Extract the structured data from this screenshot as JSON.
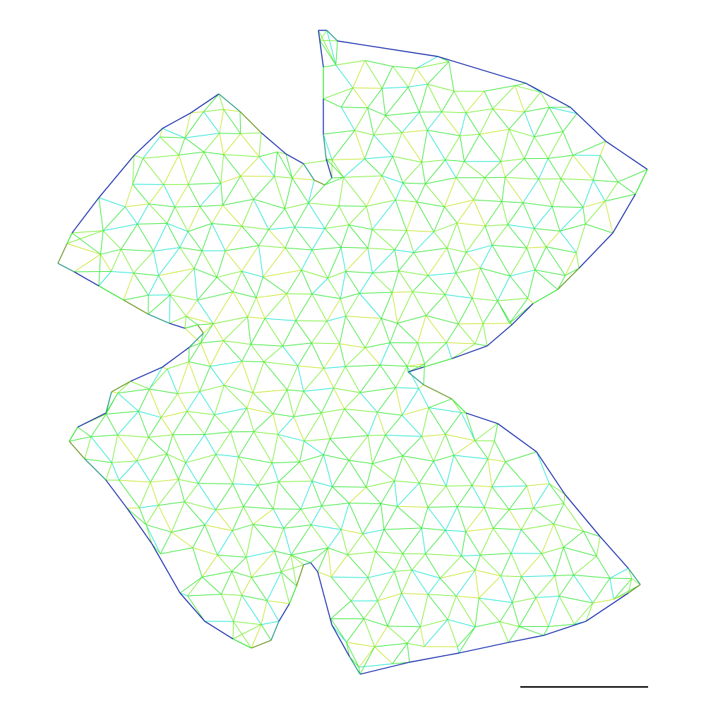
{
  "figure": {
    "kind": "flattened triangulated surface mesh (four-lobed)",
    "lobes": 4,
    "background": "#ffffff",
    "scale_bar_present": true
  },
  "colors": {
    "mesh_dominant": "#3ee83e",
    "mesh_light": "#7cf03a",
    "mesh_yellow": "#c8e632",
    "mesh_cyan": "#28e6d2",
    "boundary_dark_blue": "#1a2fae",
    "boundary_teal": "#2a9a8c",
    "boundary_olive": "#6f9a2a",
    "scale_bar": "#000000"
  }
}
